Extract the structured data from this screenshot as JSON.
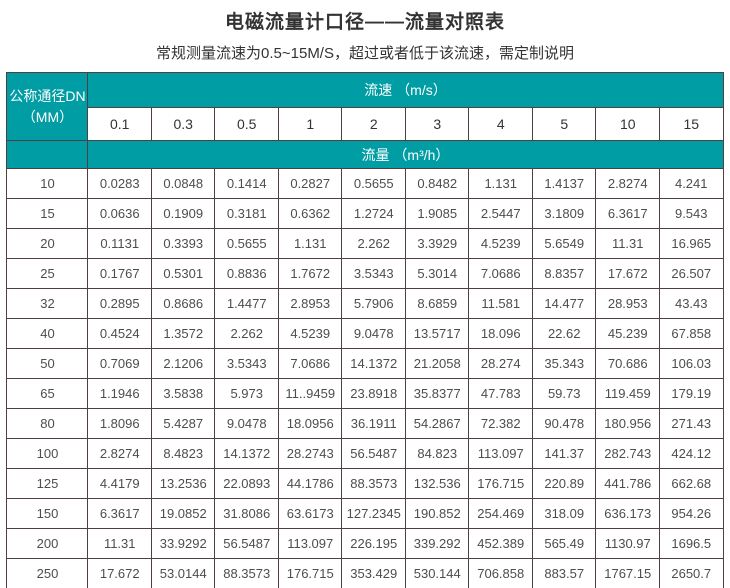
{
  "page": {
    "title": "电磁流量计口径——流量对照表",
    "subtitle": "常规测量流速为0.5~15M/S，超过或者低于该流速，需定制说明"
  },
  "table": {
    "dn_header_line1": "公称通径DN",
    "dn_header_line2": "（MM）",
    "velocity_header": "流速 （m/s）",
    "flow_header": "流量 （m³/h）",
    "velocities": [
      "0.1",
      "0.3",
      "0.5",
      "1",
      "2",
      "3",
      "4",
      "5",
      "10",
      "15"
    ],
    "rows": [
      {
        "dn": "10",
        "values": [
          "0.0283",
          "0.0848",
          "0.1414",
          "0.2827",
          "0.5655",
          "0.8482",
          "1.131",
          "1.4137",
          "2.8274",
          "4.241"
        ]
      },
      {
        "dn": "15",
        "values": [
          "0.0636",
          "0.1909",
          "0.3181",
          "0.6362",
          "1.2724",
          "1.9085",
          "2.5447",
          "3.1809",
          "6.3617",
          "9.543"
        ]
      },
      {
        "dn": "20",
        "values": [
          "0.1131",
          "0.3393",
          "0.5655",
          "1.131",
          "2.262",
          "3.3929",
          "4.5239",
          "5.6549",
          "11.31",
          "16.965"
        ]
      },
      {
        "dn": "25",
        "values": [
          "0.1767",
          "0.5301",
          "0.8836",
          "1.7672",
          "3.5343",
          "5.3014",
          "7.0686",
          "8.8357",
          "17.672",
          "26.507"
        ]
      },
      {
        "dn": "32",
        "values": [
          "0.2895",
          "0.8686",
          "1.4477",
          "2.8953",
          "5.7906",
          "8.6859",
          "11.581",
          "14.477",
          "28.953",
          "43.43"
        ]
      },
      {
        "dn": "40",
        "values": [
          "0.4524",
          "1.3572",
          "2.262",
          "4.5239",
          "9.0478",
          "13.5717",
          "18.096",
          "22.62",
          "45.239",
          "67.858"
        ]
      },
      {
        "dn": "50",
        "values": [
          "0.7069",
          "2.1206",
          "3.5343",
          "7.0686",
          "14.1372",
          "21.2058",
          "28.274",
          "35.343",
          "70.686",
          "106.03"
        ]
      },
      {
        "dn": "65",
        "values": [
          "1.1946",
          "3.5838",
          "5.973",
          "11..9459",
          "23.8918",
          "35.8377",
          "47.783",
          "59.73",
          "119.459",
          "179.19"
        ]
      },
      {
        "dn": "80",
        "values": [
          "1.8096",
          "5.4287",
          "9.0478",
          "18.0956",
          "36.1911",
          "54.2867",
          "72.382",
          "90.478",
          "180.956",
          "271.43"
        ]
      },
      {
        "dn": "100",
        "values": [
          "2.8274",
          "8.4823",
          "14.1372",
          "28.2743",
          "56.5487",
          "84.823",
          "113.097",
          "141.37",
          "282.743",
          "424.12"
        ]
      },
      {
        "dn": "125",
        "values": [
          "4.4179",
          "13.2536",
          "22.0893",
          "44.1786",
          "88.3573",
          "132.536",
          "176.715",
          "220.89",
          "441.786",
          "662.68"
        ]
      },
      {
        "dn": "150",
        "values": [
          "6.3617",
          "19.0852",
          "31.8086",
          "63.6173",
          "127.2345",
          "190.852",
          "254.469",
          "318.09",
          "636.173",
          "954.26"
        ]
      },
      {
        "dn": "200",
        "values": [
          "11.31",
          "33.9292",
          "56.5487",
          "113.097",
          "226.195",
          "339.292",
          "452.389",
          "565.49",
          "1130.97",
          "1696.5"
        ]
      },
      {
        "dn": "250",
        "values": [
          "17.672",
          "53.0144",
          "88.3573",
          "176.715",
          "353.429",
          "530.144",
          "706.858",
          "883.57",
          "1767.15",
          "2650.7"
        ]
      }
    ]
  },
  "colors": {
    "header_teal": "#009EA4",
    "border": "#4e4040",
    "title_text": "#333333",
    "cell_text": "#4d4d4d"
  }
}
